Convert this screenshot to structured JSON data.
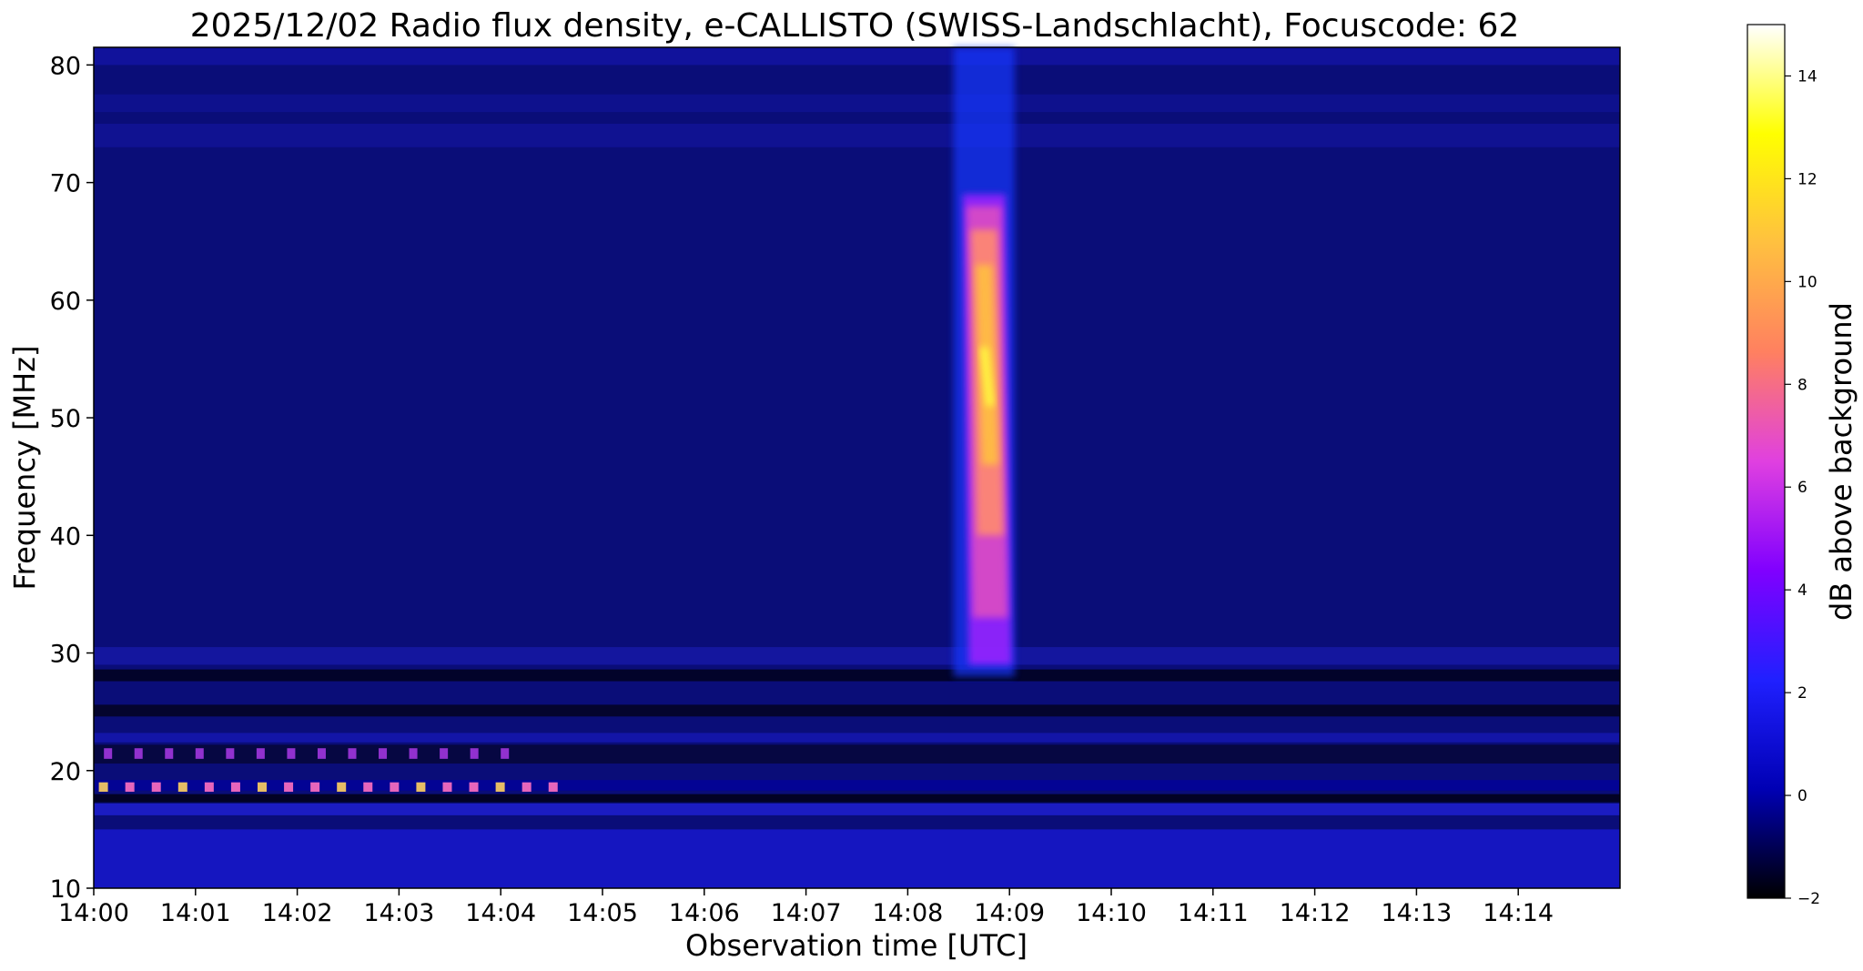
{
  "chart_data": {
    "type": "heatmap",
    "title": "2025/12/02  Radio flux density, e-CALLISTO (SWISS-Landschlacht), Focuscode: 62",
    "xlabel": "Observation time [UTC]",
    "ylabel": "Frequency [MHz]",
    "colorbar_label": "dB above background",
    "colormap": "gnuplot2",
    "x_range_minutes": [
      0,
      15
    ],
    "ylim": [
      10,
      81.5
    ],
    "clim": [
      -2,
      15
    ],
    "x_ticks": [
      {
        "label": "14:00",
        "minute": 0
      },
      {
        "label": "14:01",
        "minute": 1
      },
      {
        "label": "14:02",
        "minute": 2
      },
      {
        "label": "14:03",
        "minute": 3
      },
      {
        "label": "14:04",
        "minute": 4
      },
      {
        "label": "14:05",
        "minute": 5
      },
      {
        "label": "14:06",
        "minute": 6
      },
      {
        "label": "14:07",
        "minute": 7
      },
      {
        "label": "14:08",
        "minute": 8
      },
      {
        "label": "14:09",
        "minute": 9
      },
      {
        "label": "14:10",
        "minute": 10
      },
      {
        "label": "14:11",
        "minute": 11
      },
      {
        "label": "14:12",
        "minute": 12
      },
      {
        "label": "14:13",
        "minute": 13
      },
      {
        "label": "14:14",
        "minute": 14
      }
    ],
    "y_ticks": [
      10,
      20,
      30,
      40,
      50,
      60,
      70,
      80
    ],
    "colorbar_ticks": [
      -2,
      0,
      2,
      4,
      6,
      8,
      10,
      12,
      14
    ],
    "colormap_stops": [
      "#000000",
      "#0000b4",
      "#2020ff",
      "#8000ff",
      "#e040e0",
      "#ff8060",
      "#ffc040",
      "#ffff00",
      "#ffffff"
    ],
    "features": [
      {
        "kind": "type-III-burst",
        "time_start_minute": 8.5,
        "time_end_minute": 9.0,
        "freq_low_mhz": 28,
        "freq_high_mhz": 70,
        "peak_db": 13
      }
    ]
  }
}
